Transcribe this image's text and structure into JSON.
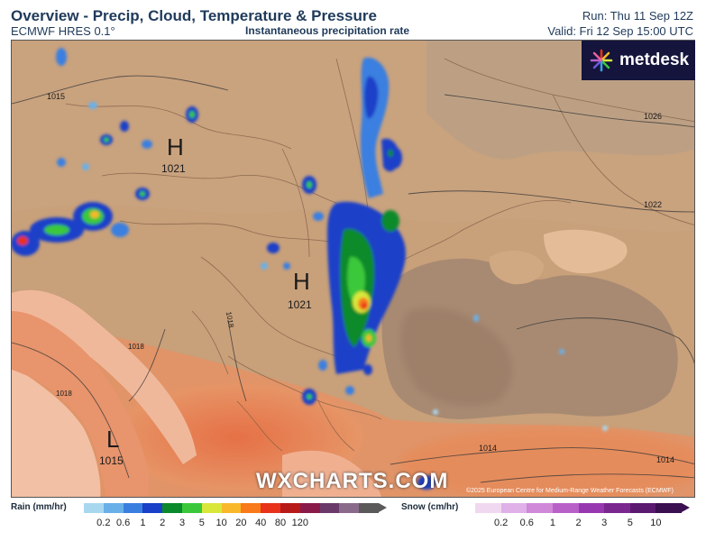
{
  "header": {
    "title": "Overview - Precip, Cloud, Temperature & Pressure",
    "model": "ECMWF HRES 0.1°",
    "subtitle": "Instantaneous precipitation rate",
    "run": "Run: Thu 11 Sep 12Z",
    "valid": "Valid: Fri 12 Sep 15:00 UTC"
  },
  "brand": {
    "logo_text": "metdesk",
    "watermark": "WXCHARTS.COM",
    "copyright": "©2025 European Centre for Medium-Range Weather Forecasts (ECMWF)"
  },
  "pressure_centers": [
    {
      "type": "H",
      "value": "1021"
    },
    {
      "type": "H",
      "value": "1021"
    },
    {
      "type": "L",
      "value": "1015"
    }
  ],
  "isobar_labels": [
    "1015",
    "1026",
    "1022",
    "1018",
    "1018",
    "1018",
    "1014",
    "1014"
  ],
  "legend": {
    "rain": {
      "label": "Rain (mm/hr)",
      "ticks": [
        "0.2",
        "0.6",
        "1",
        "2",
        "3",
        "5",
        "10",
        "20",
        "40",
        "80",
        "120"
      ],
      "colors": [
        "#a8d8f0",
        "#6ab0e8",
        "#3a7fe0",
        "#1a3fc8",
        "#0a8a2a",
        "#3ac83a",
        "#d8e83a",
        "#f8b82a",
        "#f87a1a",
        "#e8321a",
        "#b81a1a",
        "#8a1a4a",
        "#6a3a6a",
        "#8a6a8a",
        "#5a5a5a"
      ]
    },
    "snow": {
      "label": "Snow (cm/hr)",
      "ticks": [
        "0.2",
        "0.6",
        "1",
        "2",
        "3",
        "5",
        "10"
      ],
      "colors": [
        "#f0d8f0",
        "#e0b0e8",
        "#d088d8",
        "#b860c8",
        "#9838b0",
        "#7a2890",
        "#5a1a70",
        "#3a1050"
      ]
    }
  }
}
